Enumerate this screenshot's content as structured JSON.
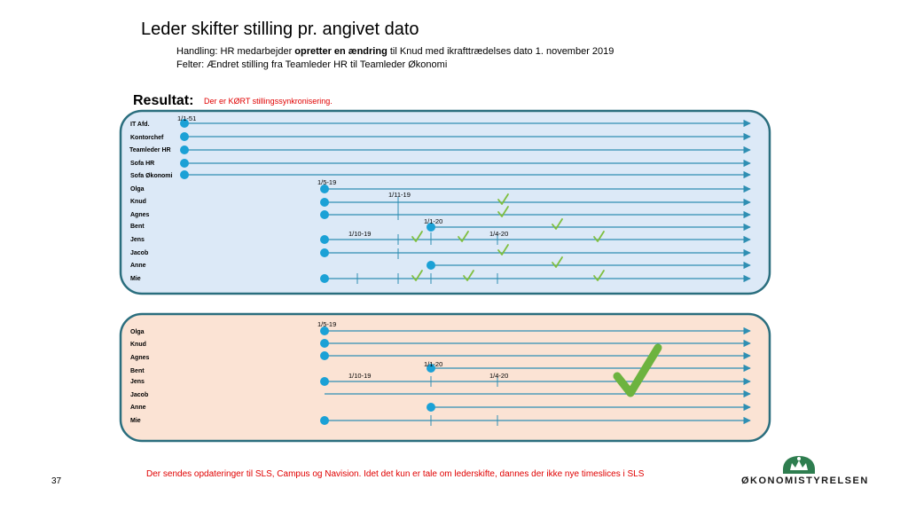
{
  "header": {
    "title": "Leder skifter stilling pr. angivet dato",
    "line1_prefix": "Handling:  HR medarbejder ",
    "line1_bold": "opretter en ændring",
    "line1_suffix": " til Knud med ikrafttrædelses dato 1. november 2019",
    "line2": "Felter: Ændret stilling fra Teamleder HR til Teamleder Økonomi"
  },
  "result": {
    "label": "Resultat:",
    "note": "Der er KØRT stillingssynkronisering."
  },
  "panel_top": {
    "rows": [
      "IT Afd.",
      "Kontorchef",
      "Teamleder HR",
      "Sofa HR",
      "Sofa Økonomi",
      "Olga",
      "Knud",
      "Agnes",
      "Bent",
      "Jens",
      "Jacob",
      "Anne",
      "Mie"
    ],
    "dates": {
      "d_1_1_51": "1/1-51",
      "d_1_5_19": "1/5-19",
      "d_1_11_19": "1/11-19",
      "d_1_1_20": "1/1-20",
      "d_1_10_19": "1/10-19",
      "d_1_4_20": "1/4-20"
    }
  },
  "panel_bottom": {
    "rows": [
      "Olga",
      "Knud",
      "Agnes",
      "Bent",
      "Jens",
      "Jacob",
      "Anne",
      "Mie"
    ],
    "dates": {
      "d_1_5_19": "1/5-19",
      "d_1_1_20": "1/1-20",
      "d_1_10_19": "1/10-19",
      "d_1_4_20": "1/4-20"
    }
  },
  "footer": {
    "text": "Der sendes opdateringer til SLS, Campus og Navision. Idet det kun er tale om lederskifte, dannes der ikke nye timeslices i SLS",
    "page": "37",
    "logo": "ØKONOMISTYRELSEN"
  },
  "colors": {
    "top_panel": "#dce9f7",
    "bottom_panel": "#fbe3d4",
    "border": "#2a6e7e",
    "line": "#2f8fb3",
    "dot": "#1ba1d6",
    "check": "#7fbf3f",
    "red": "#e00000",
    "logo_green": "#2e7d4f"
  }
}
